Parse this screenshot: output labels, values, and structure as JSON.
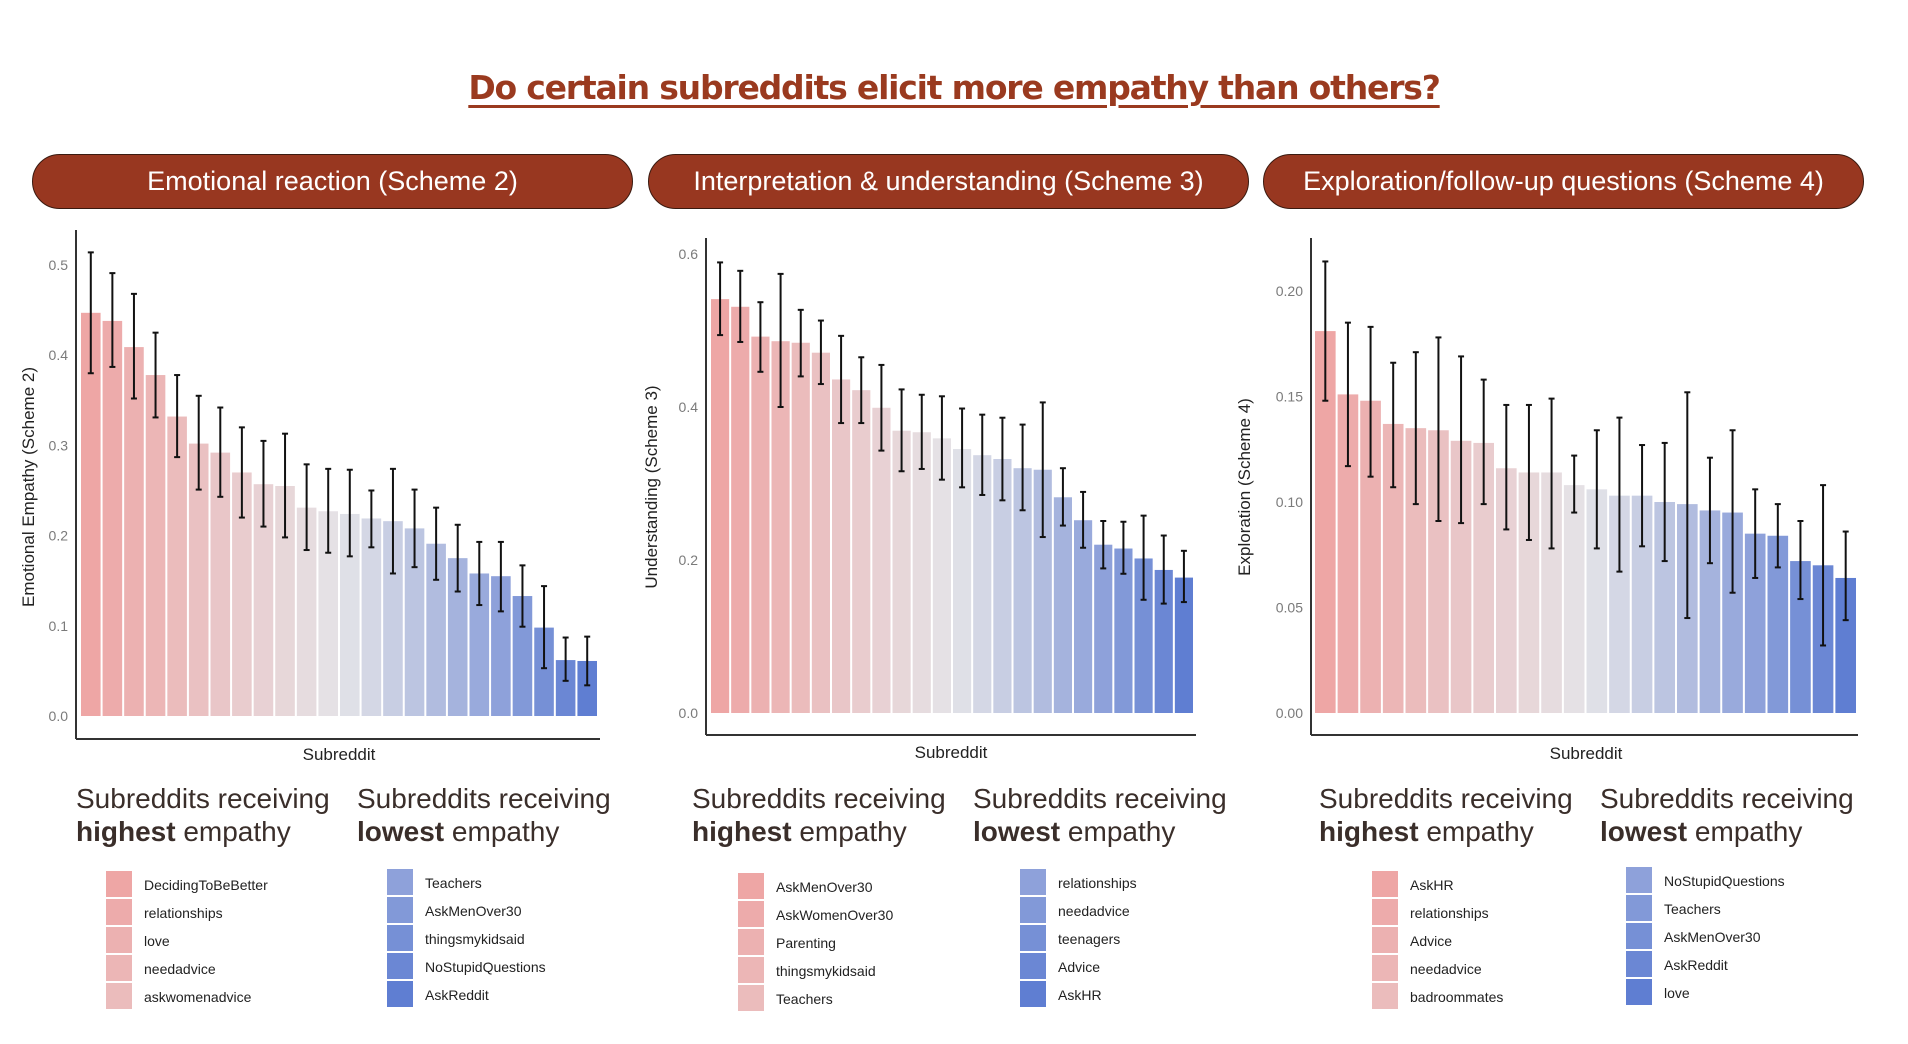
{
  "title": "Do certain subreddits elicit more empathy than others?",
  "colors": {
    "title": "#9a3a1f",
    "pill": "#983720",
    "high": "#eea6a5",
    "mid": "#e5e4e8",
    "low": "#5f7ed2",
    "error_bar": "#111111"
  },
  "panels": [
    {
      "pill": "Emotional reaction (Scheme 2)",
      "legend_high": {
        "line1": "Subreddits receiving",
        "bold": "highest",
        "rest": " empathy",
        "items": [
          "DecidingToBeBetter",
          "relationships",
          "love",
          "needadvice",
          "askwomenadvice"
        ]
      },
      "legend_low": {
        "line1": "Subreddits receiving",
        "bold": "lowest",
        "rest": " empathy",
        "items": [
          "Teachers",
          "AskMenOver30",
          "thingsmykidsaid",
          "NoStupidQuestions",
          "AskReddit"
        ]
      }
    },
    {
      "pill": "Interpretation & understanding (Scheme 3)",
      "legend_high": {
        "line1": "Subreddits receiving",
        "bold": "highest",
        "rest": " empathy",
        "items": [
          "AskMenOver30",
          "AskWomenOver30",
          "Parenting",
          "thingsmykidsaid",
          "Teachers"
        ]
      },
      "legend_low": {
        "line1": "Subreddits receiving",
        "bold": "lowest",
        "rest": " empathy",
        "items": [
          "relationships",
          "needadvice",
          "teenagers",
          "Advice",
          "AskHR"
        ]
      }
    },
    {
      "pill": "Exploration/follow-up questions (Scheme 4)",
      "legend_high": {
        "line1": "Subreddits receiving",
        "bold": "highest",
        "rest": " empathy",
        "items": [
          "AskHR",
          "relationships",
          "Advice",
          "needadvice",
          "badroommates"
        ]
      },
      "legend_low": {
        "line1": "Subreddits receiving",
        "bold": "lowest",
        "rest": " empathy",
        "items": [
          "NoStupidQuestions",
          "Teachers",
          "AskMenOver30",
          "AskReddit",
          "love"
        ]
      }
    }
  ],
  "chart_data": [
    {
      "type": "bar",
      "xlabel": "Subreddit",
      "ylabel": "Emotional Empathy (Scheme 2)",
      "yticks": [
        "0.0",
        "0.1",
        "0.2",
        "0.3",
        "0.4",
        "0.5"
      ],
      "ylim": [
        0,
        0.5
      ],
      "grid": false,
      "values": [
        0.447,
        0.438,
        0.409,
        0.378,
        0.332,
        0.302,
        0.292,
        0.27,
        0.257,
        0.255,
        0.231,
        0.227,
        0.224,
        0.219,
        0.216,
        0.208,
        0.191,
        0.175,
        0.158,
        0.155,
        0.133,
        0.098,
        0.062,
        0.061
      ],
      "error_low": [
        0.38,
        0.387,
        0.352,
        0.331,
        0.287,
        0.251,
        0.243,
        0.22,
        0.21,
        0.198,
        0.184,
        0.181,
        0.177,
        0.187,
        0.158,
        0.165,
        0.151,
        0.138,
        0.123,
        0.116,
        0.099,
        0.053,
        0.039,
        0.034
      ],
      "error_high": [
        0.514,
        0.491,
        0.468,
        0.425,
        0.378,
        0.355,
        0.342,
        0.32,
        0.305,
        0.313,
        0.279,
        0.274,
        0.273,
        0.25,
        0.274,
        0.251,
        0.231,
        0.212,
        0.193,
        0.193,
        0.167,
        0.144,
        0.087,
        0.088
      ]
    },
    {
      "type": "bar",
      "xlabel": "Subreddit",
      "ylabel": "Understanding (Scheme 3)",
      "yticks": [
        "0.0",
        "0.2",
        "0.4",
        "0.6"
      ],
      "ylim": [
        0,
        0.6
      ],
      "grid": false,
      "values": [
        0.541,
        0.531,
        0.492,
        0.486,
        0.484,
        0.471,
        0.436,
        0.422,
        0.399,
        0.369,
        0.367,
        0.359,
        0.345,
        0.337,
        0.332,
        0.32,
        0.318,
        0.282,
        0.252,
        0.22,
        0.215,
        0.202,
        0.187,
        0.177
      ],
      "error_low": [
        0.494,
        0.485,
        0.446,
        0.4,
        0.44,
        0.43,
        0.379,
        0.379,
        0.343,
        0.316,
        0.319,
        0.305,
        0.295,
        0.285,
        0.278,
        0.265,
        0.23,
        0.245,
        0.216,
        0.189,
        0.182,
        0.148,
        0.143,
        0.145
      ],
      "error_high": [
        0.589,
        0.578,
        0.537,
        0.574,
        0.527,
        0.513,
        0.493,
        0.465,
        0.455,
        0.423,
        0.416,
        0.414,
        0.398,
        0.39,
        0.386,
        0.377,
        0.406,
        0.32,
        0.289,
        0.251,
        0.25,
        0.258,
        0.232,
        0.212
      ]
    },
    {
      "type": "bar",
      "xlabel": "Subreddit",
      "ylabel": "Exploration (Scheme 4)",
      "yticks": [
        "0.00",
        "0.05",
        "0.10",
        "0.15",
        "0.20"
      ],
      "ylim": [
        0,
        0.2
      ],
      "grid": false,
      "values": [
        0.181,
        0.151,
        0.148,
        0.137,
        0.135,
        0.134,
        0.129,
        0.128,
        0.116,
        0.114,
        0.114,
        0.108,
        0.106,
        0.103,
        0.103,
        0.1,
        0.099,
        0.096,
        0.095,
        0.085,
        0.084,
        0.072,
        0.07,
        0.064
      ],
      "error_low": [
        0.148,
        0.117,
        0.112,
        0.107,
        0.099,
        0.091,
        0.09,
        0.099,
        0.087,
        0.082,
        0.078,
        0.095,
        0.078,
        0.067,
        0.079,
        0.072,
        0.045,
        0.071,
        0.057,
        0.064,
        0.069,
        0.054,
        0.032,
        0.044
      ],
      "error_high": [
        0.214,
        0.185,
        0.183,
        0.166,
        0.171,
        0.178,
        0.169,
        0.158,
        0.146,
        0.146,
        0.149,
        0.122,
        0.134,
        0.14,
        0.127,
        0.128,
        0.152,
        0.121,
        0.134,
        0.106,
        0.099,
        0.091,
        0.108,
        0.086
      ]
    }
  ]
}
